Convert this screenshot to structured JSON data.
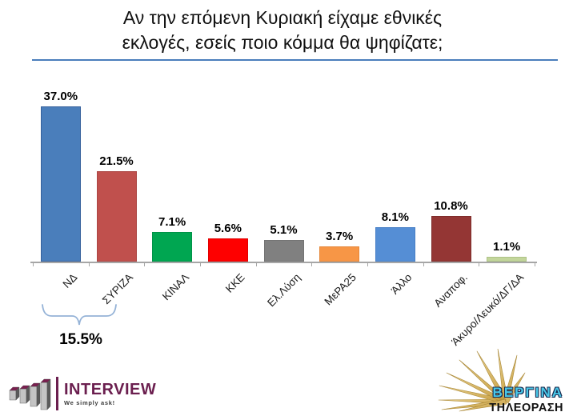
{
  "header": {
    "line1": "Αν την επόμενη Κυριακή είχαμε εθνικές",
    "line2": "εκλογές, εσείς ποιο κόμμα θα ψηφίζατε;"
  },
  "chart_data": {
    "type": "bar",
    "title": "Αν την επόμενη Κυριακή είχαμε εθνικές εκλογές, εσείς ποιο κόμμα θα ψηφίζατε;",
    "categories": [
      "ΝΔ",
      "ΣΥΡΙΖΑ",
      "ΚΙΝΑΛ",
      "ΚΚΕ",
      "Ελ.Λύση",
      "ΜεΡΑ25",
      "Άλλο",
      "Αναποφ.",
      "Άκυρο/Λευκό/ΔΓ/ΔΑ"
    ],
    "values": [
      37.0,
      21.5,
      7.1,
      5.6,
      5.1,
      3.7,
      8.1,
      10.8,
      1.1
    ],
    "value_labels": [
      "37.0%",
      "21.5%",
      "7.1%",
      "5.6%",
      "5.1%",
      "3.7%",
      "8.1%",
      "10.8%",
      "1.1%"
    ],
    "bar_colors": [
      "#4a7ebb",
      "#c0504d",
      "#00a651",
      "#fe0000",
      "#808080",
      "#f79646",
      "#558ed5",
      "#943634",
      "#c3d69b"
    ],
    "bar_border_colors": [
      "#36619c",
      "#ac4644",
      "#009247",
      "#e00000",
      "#747474",
      "#e5873a",
      "#477fc6",
      "#7f2d2b",
      "#aec287"
    ],
    "xlabel": "",
    "ylabel": "",
    "ylim": [
      0,
      40
    ],
    "grid": false,
    "legend": "none",
    "bracket": {
      "label": "15.5%",
      "from": "ΝΔ",
      "to": "ΣΥΡΙΖΑ"
    }
  },
  "footer": {
    "interview": {
      "name": "INTERVIEW",
      "tagline": "We simply ask!"
    },
    "vergina": {
      "name": "ΒΕΡΓΙΝΑ",
      "sub": "ΤΗΛΕΟΡΑΣΗ"
    }
  },
  "colors": {
    "title_rule": "#4a7ebb",
    "axis": "#a6a6a6",
    "bracket": "#95b3d7",
    "interview_brand": "#6b1f4f",
    "vergina_cyan": "#49c8e8",
    "vergina_gold": "#cda44e"
  }
}
